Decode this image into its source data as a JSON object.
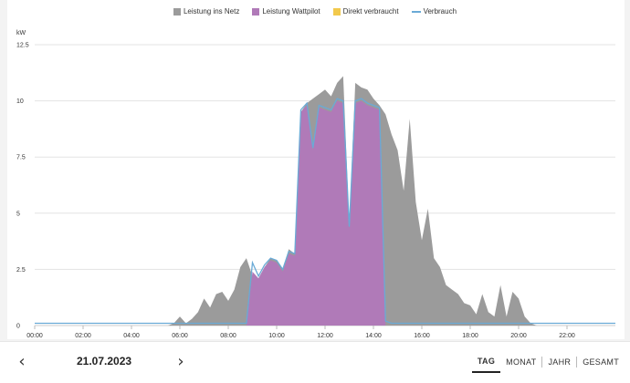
{
  "legend": [
    {
      "label": "Leistung ins Netz",
      "color": "#9b9b9b",
      "kind": "box"
    },
    {
      "label": "Leistung Wattpilot",
      "color": "#b07ab8",
      "kind": "box"
    },
    {
      "label": "Direkt verbraucht",
      "color": "#f2c94c",
      "kind": "box"
    },
    {
      "label": "Verbrauch",
      "color": "#6aaad6",
      "kind": "line"
    }
  ],
  "chart_data": {
    "type": "area",
    "ylabel": "kW",
    "ylim": [
      0,
      12.5
    ],
    "yticks": [
      "0",
      "2.5",
      "5",
      "7.5",
      "10",
      "12.5"
    ],
    "xticks": [
      "00:00",
      "02:00",
      "04:00",
      "06:00",
      "08:00",
      "10:00",
      "12:00",
      "14:00",
      "16:00",
      "18:00",
      "20:00",
      "22:00"
    ],
    "x": [
      "0:00",
      "5:30",
      "5:45",
      "6:00",
      "6:15",
      "6:30",
      "6:45",
      "7:00",
      "7:15",
      "7:30",
      "7:45",
      "8:00",
      "8:15",
      "8:30",
      "8:45",
      "9:00",
      "9:15",
      "9:30",
      "9:45",
      "10:00",
      "10:15",
      "10:30",
      "10:45",
      "11:00",
      "11:15",
      "11:30",
      "11:45",
      "12:00",
      "12:15",
      "12:30",
      "12:45",
      "13:00",
      "13:15",
      "13:30",
      "13:45",
      "14:00",
      "14:15",
      "14:30",
      "14:45",
      "15:00",
      "15:15",
      "15:30",
      "15:45",
      "16:00",
      "16:15",
      "16:30",
      "16:45",
      "17:00",
      "17:15",
      "17:30",
      "17:45",
      "18:00",
      "18:15",
      "18:30",
      "18:45",
      "19:00",
      "19:15",
      "19:30",
      "19:45",
      "20:00",
      "20:15",
      "20:30",
      "20:45",
      "21:00",
      "24:00"
    ],
    "series": [
      {
        "name": "Leistung ins Netz",
        "color": "#9b9b9b",
        "values": [
          0,
          0,
          0.1,
          0.4,
          0.1,
          0.3,
          0.6,
          1.2,
          0.8,
          1.4,
          1.5,
          1.1,
          1.6,
          2.6,
          3.0,
          2.2,
          2.1,
          2.6,
          3.0,
          2.9,
          2.5,
          3.4,
          3.2,
          9.5,
          9.9,
          10.1,
          10.3,
          10.5,
          10.2,
          10.8,
          11.1,
          4.5,
          10.8,
          10.6,
          10.5,
          10.1,
          9.8,
          9.4,
          8.5,
          7.8,
          6.0,
          9.2,
          5.5,
          3.8,
          5.2,
          3.0,
          2.6,
          1.8,
          1.6,
          1.4,
          1.0,
          0.9,
          0.5,
          1.4,
          0.6,
          0.4,
          1.8,
          0.4,
          1.5,
          1.2,
          0.4,
          0.1,
          0,
          0,
          0
        ]
      },
      {
        "name": "Leistung Wattpilot",
        "color": "#b07ab8",
        "values": [
          0,
          0,
          0,
          0,
          0,
          0,
          0,
          0,
          0,
          0,
          0,
          0,
          0,
          0,
          0,
          2.4,
          2.1,
          2.6,
          2.9,
          2.8,
          2.4,
          3.2,
          3.1,
          9.5,
          9.8,
          7.8,
          9.7,
          9.6,
          9.5,
          10.0,
          9.9,
          4.3,
          9.9,
          10.0,
          9.8,
          9.7,
          9.6,
          0,
          0,
          0,
          0,
          0,
          0,
          0,
          0,
          0,
          0,
          0,
          0,
          0,
          0,
          0,
          0,
          0,
          0,
          0,
          0,
          0,
          0,
          0,
          0,
          0,
          0,
          0,
          0
        ]
      },
      {
        "name": "Direkt verbraucht",
        "color": "#f2c94c",
        "values": [
          0,
          0,
          0,
          0,
          0,
          0,
          0,
          0,
          0,
          0,
          0,
          0,
          0,
          0,
          0,
          0,
          0,
          0,
          0,
          0,
          0,
          0,
          0,
          0,
          0,
          0,
          0,
          0,
          0,
          0,
          0,
          0,
          0,
          0,
          0,
          0,
          0,
          0,
          0,
          0,
          0,
          0,
          0,
          0,
          0,
          0,
          0,
          0,
          0,
          0,
          0,
          0,
          0,
          0,
          0,
          0,
          0,
          0,
          0,
          0,
          0,
          0,
          0,
          0,
          0
        ]
      },
      {
        "name": "Verbrauch",
        "color": "#6aaad6",
        "values": [
          0.1,
          0.1,
          0.1,
          0.1,
          0.1,
          0.1,
          0.1,
          0.1,
          0.1,
          0.1,
          0.1,
          0.1,
          0.1,
          0.1,
          0.1,
          2.8,
          2.2,
          2.7,
          3.0,
          2.9,
          2.5,
          3.3,
          3.2,
          9.6,
          9.9,
          7.9,
          9.8,
          9.7,
          9.6,
          10.1,
          10.0,
          4.4,
          10.0,
          10.1,
          9.9,
          9.8,
          9.7,
          0.2,
          0.1,
          0.1,
          0.1,
          0.1,
          0.1,
          0.1,
          0.1,
          0.1,
          0.1,
          0.1,
          0.1,
          0.1,
          0.1,
          0.1,
          0.1,
          0.1,
          0.1,
          0.1,
          0.1,
          0.1,
          0.1,
          0.1,
          0.1,
          0.1,
          0.1,
          0.1,
          0.1
        ]
      }
    ]
  },
  "footer": {
    "date": "21.07.2023",
    "prev": "‹",
    "next": "›",
    "tabs": [
      "TAG",
      "MONAT",
      "JAHR",
      "GESAMT"
    ],
    "active_tab": "TAG"
  }
}
